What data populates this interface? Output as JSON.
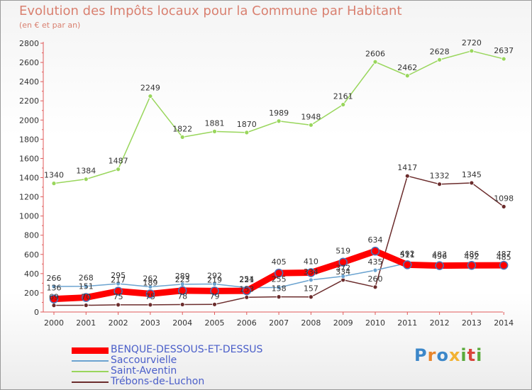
{
  "chart_data": {
    "type": "line",
    "title": "Evolution des Impôts locaux pour la Commune par Habitant",
    "subtitle": "(en € et par an)",
    "x": [
      2000,
      2001,
      2002,
      2003,
      2004,
      2005,
      2006,
      2007,
      2008,
      2009,
      2010,
      2011,
      2012,
      2013,
      2014
    ],
    "ylim": [
      0,
      2800
    ],
    "yticks": [
      0,
      200,
      400,
      600,
      800,
      1000,
      1200,
      1400,
      1600,
      1800,
      2000,
      2200,
      2400,
      2600,
      2800
    ],
    "grid": false,
    "series": [
      {
        "name": "Saccourvielle",
        "color": "#6ba3d0",
        "values": [
          266,
          268,
          295,
          262,
          289,
          292,
          254,
          255,
          334,
          372,
          435,
          511,
          496,
          492,
          485
        ]
      },
      {
        "name": "Saint-Aventin",
        "color": "#99d65c",
        "values": [
          1340,
          1384,
          1487,
          2249,
          1822,
          1881,
          1870,
          1989,
          1948,
          2161,
          2606,
          2462,
          2628,
          2720,
          2637
        ]
      },
      {
        "name": "Trébons-de-Luchon",
        "color": "#6b2c2c",
        "values": [
          69,
          70,
          75,
          75,
          78,
          79,
          153,
          158,
          157,
          334,
          260,
          1417,
          1332,
          1345,
          1098
        ]
      },
      {
        "name": "BENQUE-DESSOUS-ET-DESSUS",
        "color": "#ff0000",
        "values": [
          136,
          151,
          217,
          189,
          223,
          219,
          221,
          405,
          410,
          519,
          634,
          492,
          483,
          486,
          487
        ]
      }
    ],
    "legend_order": [
      "BENQUE-DESSOUS-ET-DESSUS",
      "Saccourvielle",
      "Saint-Aventin",
      "Trébons-de-Luchon"
    ],
    "legend_position": "bottom-left"
  },
  "branding": {
    "letters": [
      "P",
      "r",
      "o",
      "x",
      "i",
      "t",
      "i"
    ],
    "colors": [
      "#3c87c9",
      "#e8852b",
      "#3c87c9",
      "#f2b233",
      "#5aaa3c",
      "#d9453c",
      "#5aaa3c"
    ]
  }
}
